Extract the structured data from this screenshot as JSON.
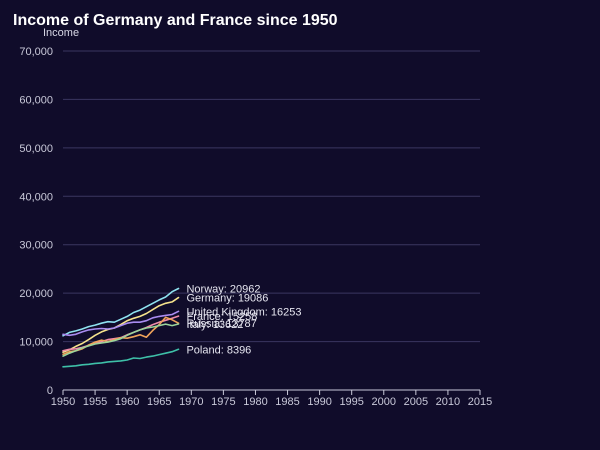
{
  "chart_data": {
    "type": "line",
    "title": "Income of Germany and France since 1950",
    "xlabel": "",
    "ylabel": "Income",
    "xlim": [
      1950,
      2015
    ],
    "ylim": [
      0,
      70000
    ],
    "x_ticks": [
      "1950",
      "1955",
      "1960",
      "1965",
      "1970",
      "1975",
      "1980",
      "1985",
      "1990",
      "1995",
      "2000",
      "2005",
      "2010",
      "2015"
    ],
    "y_ticks": [
      "0",
      "10,000",
      "20,000",
      "30,000",
      "40,000",
      "50,000",
      "60,000",
      "70,000"
    ],
    "x_tick_values": [
      1950,
      1955,
      1960,
      1965,
      1970,
      1975,
      1980,
      1985,
      1990,
      1995,
      2000,
      2005,
      2010,
      2015
    ],
    "y_tick_values": [
      0,
      10000,
      20000,
      30000,
      40000,
      50000,
      60000,
      70000
    ],
    "grid": "horizontal",
    "x": [
      1950,
      1951,
      1952,
      1953,
      1954,
      1955,
      1956,
      1957,
      1958,
      1959,
      1960,
      1961,
      1962,
      1963,
      1964,
      1965,
      1966,
      1967,
      1968
    ],
    "series": [
      {
        "name": "Norway",
        "end_label": "Norway: 20962",
        "color": "#8fe3f0",
        "values": [
          11200,
          11900,
          12200,
          12600,
          13100,
          13400,
          13800,
          14100,
          14000,
          14600,
          15200,
          16000,
          16500,
          17200,
          17900,
          18600,
          19200,
          20300,
          20962
        ]
      },
      {
        "name": "Germany",
        "end_label": "Germany: 19086",
        "color": "#f6e38c",
        "values": [
          7800,
          8300,
          9000,
          9600,
          10400,
          11300,
          12000,
          12500,
          12800,
          13500,
          14300,
          14800,
          15200,
          15800,
          16600,
          17400,
          17900,
          18200,
          19086
        ]
      },
      {
        "name": "United Kingdom",
        "end_label": "United Kingdom: 16253",
        "color": "#a98cf0",
        "values": [
          11500,
          11300,
          11500,
          12000,
          12400,
          12600,
          12700,
          12600,
          12800,
          13300,
          13800,
          14000,
          14000,
          14300,
          14900,
          15200,
          15400,
          15600,
          16253
        ]
      },
      {
        "name": "France",
        "end_label": "France: 15258",
        "color": "#f08ca9",
        "values": [
          8100,
          8400,
          8500,
          8800,
          9200,
          9600,
          10000,
          10400,
          10600,
          10800,
          11400,
          11900,
          12400,
          12900,
          13500,
          14000,
          14400,
          14800,
          15258
        ]
      },
      {
        "name": "Russia",
        "end_label": "Russia: 13787",
        "color": "#f0a35a",
        "values": [
          7400,
          7900,
          8100,
          8500,
          9300,
          9900,
          10300,
          10000,
          10400,
          10800,
          10700,
          11000,
          11400,
          10900,
          12300,
          13500,
          15000,
          14500,
          13787
        ]
      },
      {
        "name": "Italy",
        "end_label": "Italy: 13622",
        "color": "#9bd49b",
        "values": [
          7000,
          7600,
          8100,
          8700,
          9100,
          9500,
          9700,
          9900,
          10200,
          10600,
          11300,
          11900,
          12400,
          12800,
          13000,
          13300,
          13600,
          13300,
          13622
        ]
      },
      {
        "name": "Poland",
        "end_label": "Poland: 8396",
        "color": "#3ec0a8",
        "values": [
          4800,
          4900,
          5000,
          5200,
          5300,
          5500,
          5600,
          5800,
          5900,
          6000,
          6200,
          6600,
          6500,
          6800,
          7000,
          7300,
          7600,
          7900,
          8396
        ]
      }
    ]
  }
}
